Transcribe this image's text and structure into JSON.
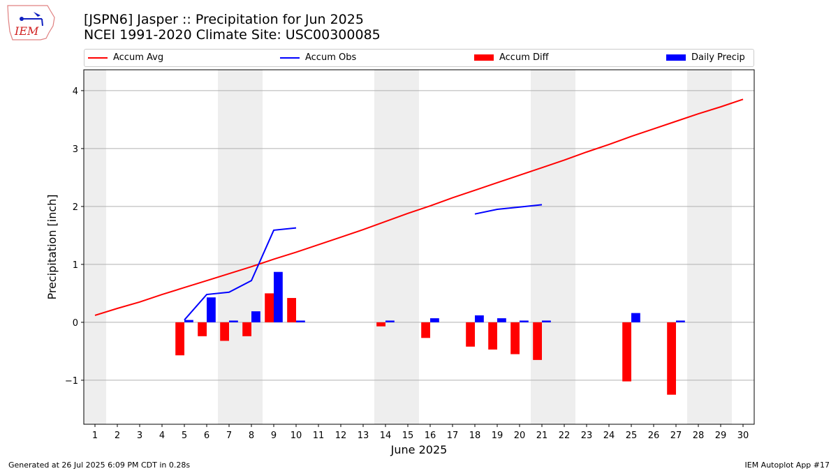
{
  "header": {
    "title_line1": "[JSPN6] Jasper :: Precipitation for Jun 2025",
    "title_line2": "NCEI 1991-2020 Climate Site: USC00300085",
    "logo_text": "IEM"
  },
  "footer": {
    "left": "Generated at 26 Jul 2025 6:09 PM CDT in 0.28s",
    "right": "IEM Autoplot App #17"
  },
  "colors": {
    "avg": "#ff0000",
    "obs": "#0000ff",
    "diff": "#ff0000",
    "daily": "#0000ff",
    "weekend": "#eeeeee",
    "grid": "#b0b0b0"
  },
  "chart_data": {
    "type": "bar",
    "title": "[JSPN6] Jasper :: Precipitation for Jun 2025",
    "xlabel": "June 2025",
    "ylabel": "Precipitation [inch]",
    "xlim": [
      0.5,
      30.5
    ],
    "ylim": [
      -1.76,
      4.36
    ],
    "yticks": [
      -1,
      0,
      1,
      2,
      3,
      4
    ],
    "ytick_labels": [
      "−1",
      "0",
      "1",
      "2",
      "3",
      "4"
    ],
    "x": [
      1,
      2,
      3,
      4,
      5,
      6,
      7,
      8,
      9,
      10,
      11,
      12,
      13,
      14,
      15,
      16,
      17,
      18,
      19,
      20,
      21,
      22,
      23,
      24,
      25,
      26,
      27,
      28,
      29,
      30
    ],
    "weekend_days": [
      1,
      7,
      8,
      14,
      15,
      21,
      22,
      28,
      29
    ],
    "grid": "horizontal",
    "legend": {
      "placement": "top",
      "entries": [
        "Accum Avg",
        "Accum Obs",
        "Accum Diff",
        "Daily Precip"
      ]
    },
    "series": [
      {
        "name": "Accum Avg",
        "type": "line",
        "values": [
          0.12,
          0.24,
          0.35,
          0.48,
          0.6,
          0.72,
          0.84,
          0.96,
          1.09,
          1.21,
          1.34,
          1.47,
          1.6,
          1.74,
          1.88,
          2.01,
          2.15,
          2.28,
          2.41,
          2.54,
          2.67,
          2.8,
          2.94,
          3.07,
          3.21,
          3.34,
          3.47,
          3.6,
          3.72,
          3.85
        ]
      },
      {
        "name": "Accum Obs",
        "type": "line",
        "values": [
          null,
          null,
          null,
          null,
          0.04,
          0.48,
          0.52,
          0.72,
          1.59,
          1.63,
          null,
          null,
          null,
          null,
          null,
          null,
          null,
          1.87,
          1.95,
          1.99,
          2.03,
          null,
          null,
          null,
          null,
          null,
          null,
          null,
          null,
          null
        ]
      },
      {
        "name": "Accum Diff",
        "type": "bar",
        "values": [
          null,
          null,
          null,
          null,
          -0.57,
          -0.24,
          -0.32,
          -0.24,
          0.5,
          0.42,
          null,
          null,
          null,
          -0.07,
          null,
          -0.27,
          null,
          -0.42,
          -0.47,
          -0.55,
          -0.65,
          null,
          null,
          null,
          -1.02,
          null,
          -1.25,
          null,
          null,
          null
        ]
      },
      {
        "name": "Daily Precip",
        "type": "bar",
        "values": [
          null,
          null,
          null,
          null,
          0.04,
          0.43,
          0.03,
          0.19,
          0.87,
          0.03,
          null,
          null,
          null,
          0.03,
          null,
          0.07,
          null,
          0.12,
          0.07,
          0.03,
          0.03,
          null,
          null,
          null,
          0.16,
          null,
          0.03,
          null,
          null,
          null
        ]
      }
    ]
  }
}
